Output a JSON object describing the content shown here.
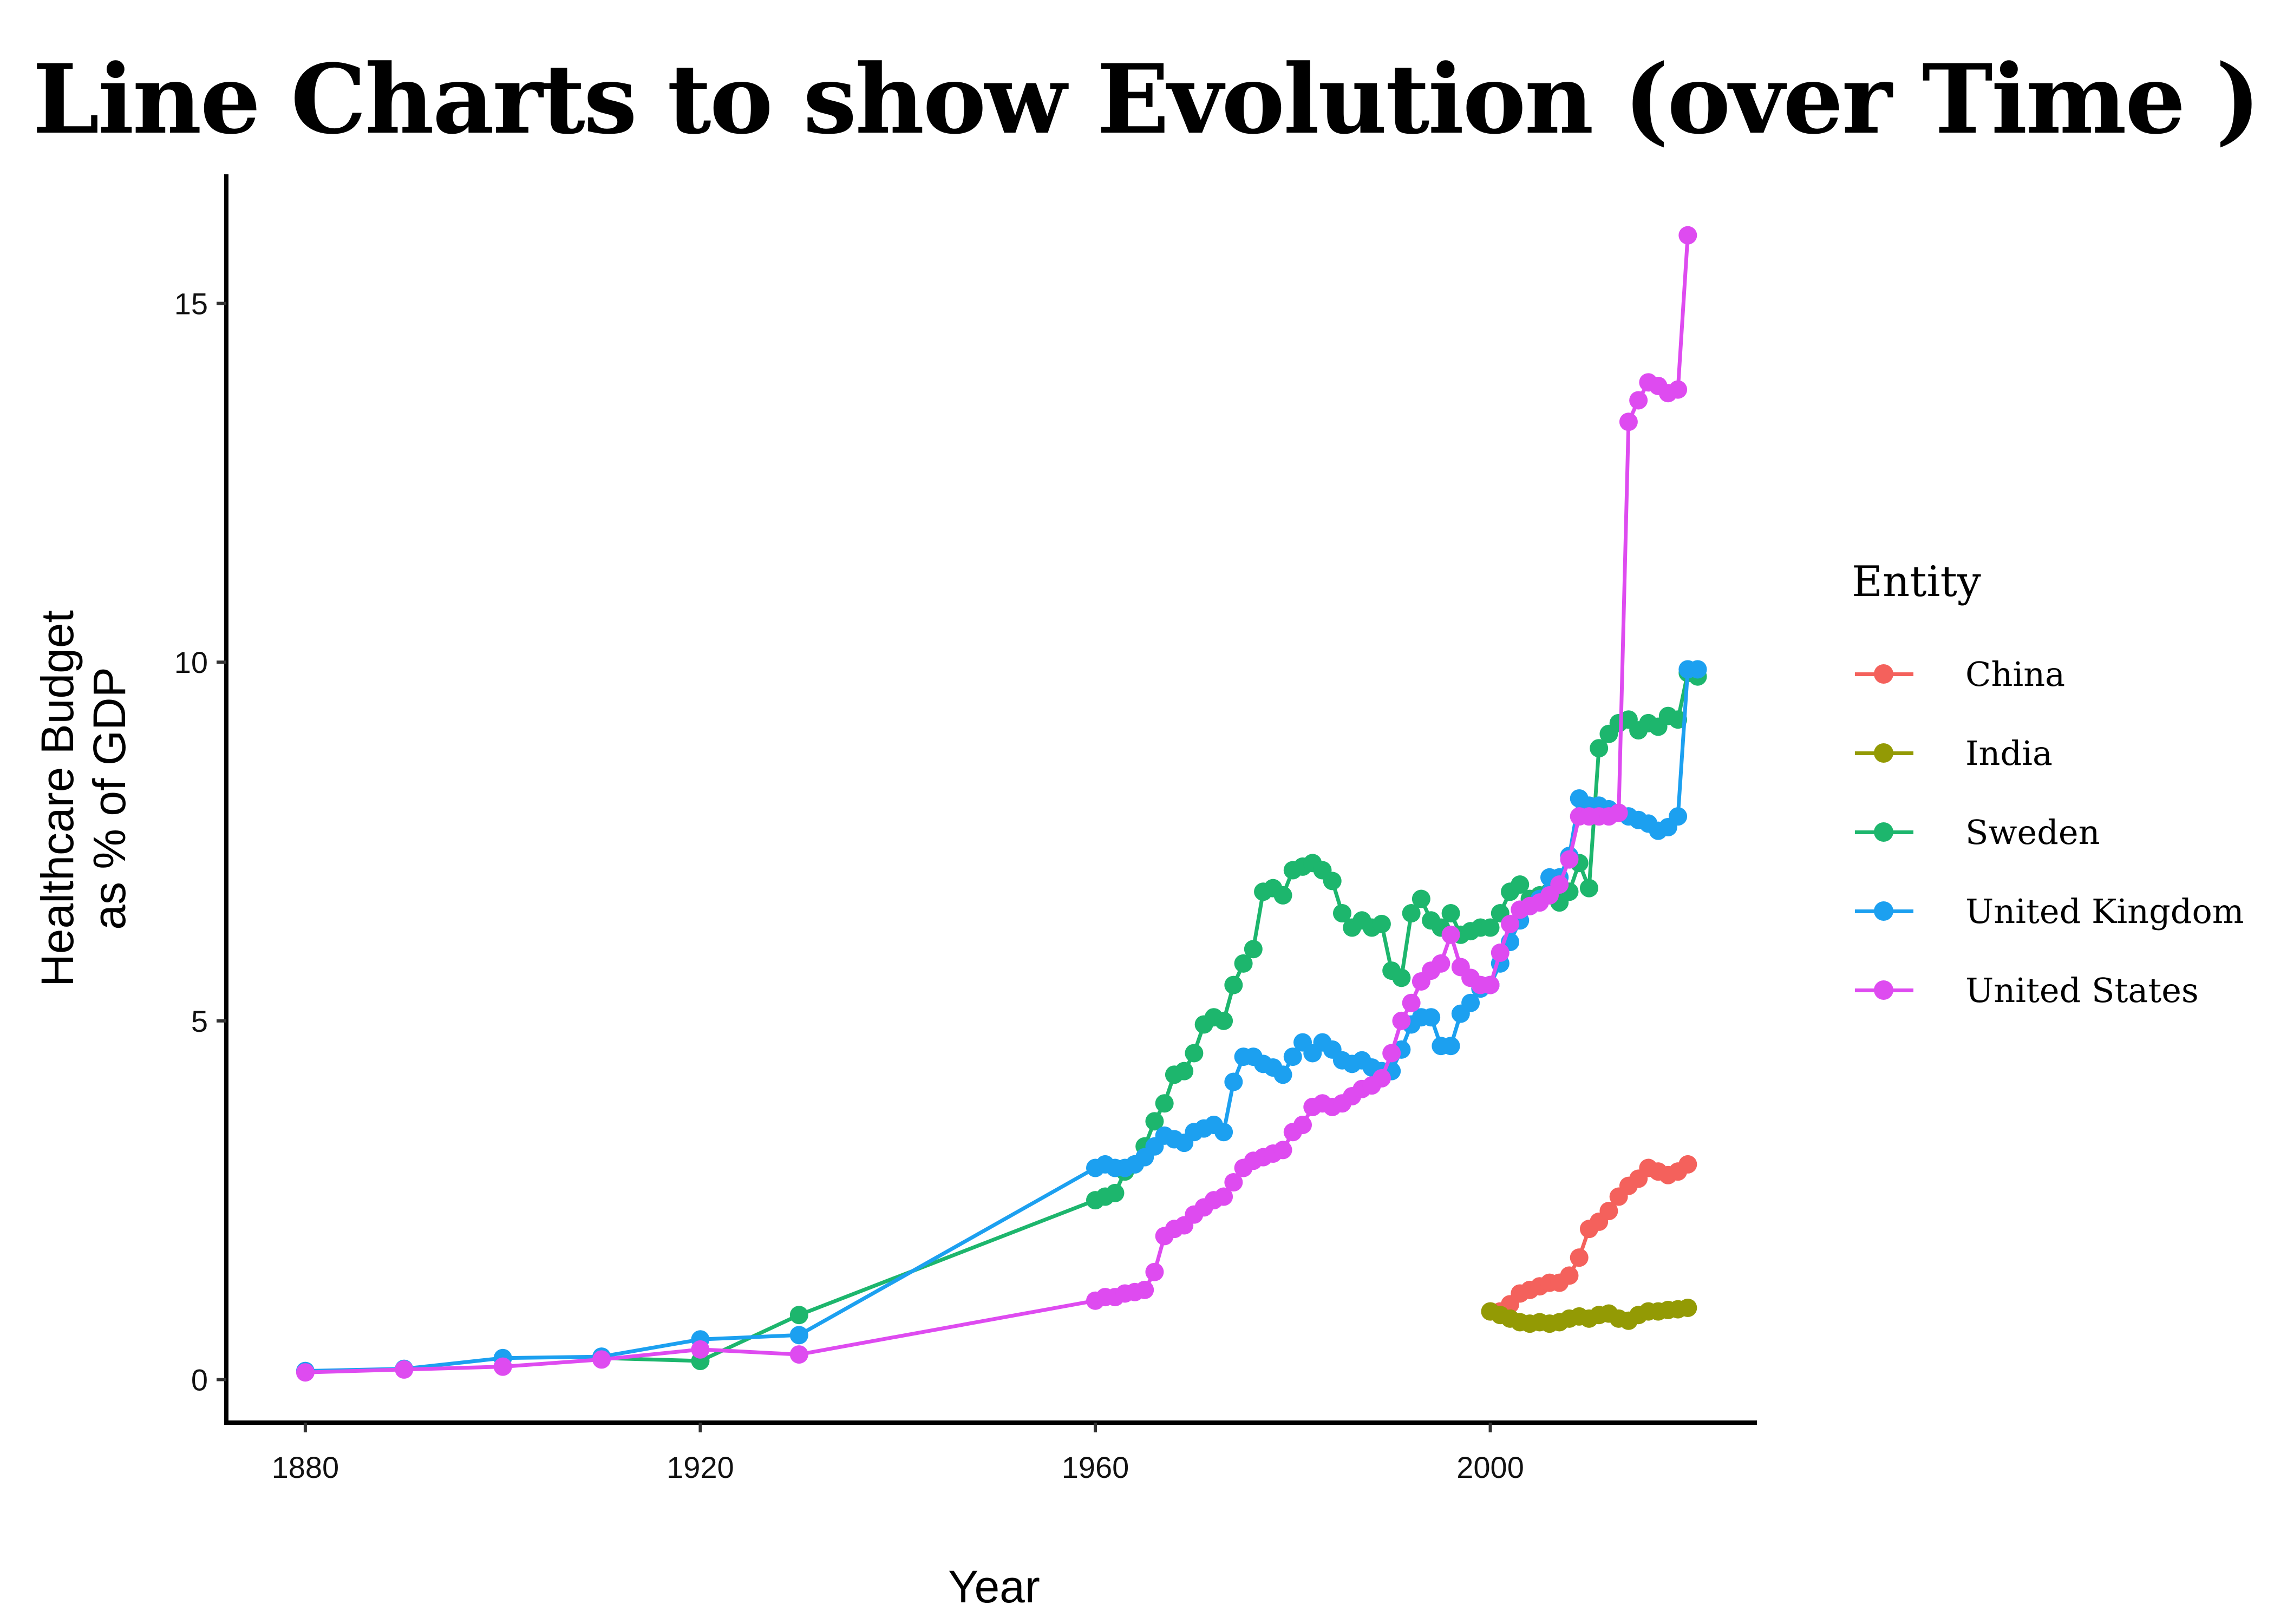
{
  "chart_data": {
    "type": "line",
    "title": "Line Charts to show Evolution (over Time )",
    "xlabel": "Year",
    "ylabel": [
      "Healthcare Budget",
      "as % of GDP"
    ],
    "xlim": [
      1872,
      2027
    ],
    "ylim": [
      -0.6,
      16.8
    ],
    "x_ticks": [
      1880,
      1920,
      1960,
      2000
    ],
    "y_ticks": [
      0,
      5,
      10,
      15
    ],
    "grid": false,
    "legend": {
      "title": "Entity",
      "position": "right"
    },
    "series": [
      {
        "name": "China",
        "color": "#F4615C",
        "x": [
          2000,
          2001,
          2002,
          2003,
          2004,
          2005,
          2006,
          2007,
          2008,
          2009,
          2010,
          2011,
          2012,
          2013,
          2014,
          2015,
          2016,
          2017,
          2018,
          2019,
          2020
        ],
        "y": [
          0.95,
          0.95,
          1.05,
          1.2,
          1.25,
          1.3,
          1.35,
          1.35,
          1.45,
          1.7,
          2.1,
          2.2,
          2.35,
          2.55,
          2.7,
          2.8,
          2.95,
          2.9,
          2.85,
          2.9,
          3.0
        ]
      },
      {
        "name": "India",
        "color": "#939A04",
        "x": [
          2000,
          2001,
          2002,
          2003,
          2004,
          2005,
          2006,
          2007,
          2008,
          2009,
          2010,
          2011,
          2012,
          2013,
          2014,
          2015,
          2016,
          2017,
          2018,
          2019,
          2020
        ],
        "y": [
          0.95,
          0.9,
          0.85,
          0.8,
          0.78,
          0.8,
          0.78,
          0.8,
          0.85,
          0.88,
          0.85,
          0.9,
          0.92,
          0.85,
          0.82,
          0.9,
          0.95,
          0.95,
          0.97,
          0.98,
          1.0
        ]
      },
      {
        "name": "Sweden",
        "color": "#1DB66D",
        "x": [
          1910,
          1920,
          1930,
          1960,
          1961,
          1962,
          1963,
          1964,
          1965,
          1966,
          1967,
          1968,
          1969,
          1970,
          1971,
          1972,
          1973,
          1974,
          1975,
          1976,
          1977,
          1978,
          1979,
          1980,
          1981,
          1982,
          1983,
          1984,
          1985,
          1986,
          1987,
          1988,
          1989,
          1990,
          1991,
          1992,
          1993,
          1994,
          1995,
          1996,
          1997,
          1998,
          1999,
          2000,
          2001,
          2002,
          2003,
          2004,
          2005,
          2006,
          2007,
          2008,
          2009,
          2010,
          2011,
          2012,
          2013,
          2014,
          2015,
          2016,
          2017,
          2018,
          2019,
          2020,
          2021
        ],
        "y": [
          0.3,
          0.26,
          0.9,
          2.5,
          2.55,
          2.6,
          2.9,
          3.0,
          3.25,
          3.6,
          3.85,
          4.25,
          4.3,
          4.55,
          4.95,
          5.05,
          5.0,
          5.5,
          5.8,
          6.0,
          6.8,
          6.85,
          6.75,
          7.1,
          7.15,
          7.2,
          7.1,
          6.95,
          6.5,
          6.3,
          6.4,
          6.3,
          6.35,
          5.7,
          5.6,
          6.5,
          6.7,
          6.4,
          6.3,
          6.5,
          6.2,
          6.25,
          6.3,
          6.3,
          6.5,
          6.8,
          6.9,
          6.7,
          6.75,
          6.8,
          6.65,
          6.8,
          7.2,
          6.85,
          8.8,
          9.0,
          9.15,
          9.2,
          9.05,
          9.15,
          9.1,
          9.25,
          9.2,
          9.85,
          9.8
        ]
      },
      {
        "name": "United Kingdom",
        "color": "#1CA0F0",
        "x": [
          1880,
          1890,
          1900,
          1910,
          1920,
          1930,
          1960,
          1961,
          1962,
          1963,
          1964,
          1965,
          1966,
          1967,
          1968,
          1969,
          1970,
          1971,
          1972,
          1973,
          1974,
          1975,
          1976,
          1977,
          1978,
          1979,
          1980,
          1981,
          1982,
          1983,
          1984,
          1985,
          1986,
          1987,
          1988,
          1989,
          1990,
          1991,
          1992,
          1993,
          1994,
          1995,
          1996,
          1997,
          1998,
          1999,
          2000,
          2001,
          2002,
          2003,
          2004,
          2005,
          2006,
          2007,
          2008,
          2009,
          2010,
          2011,
          2012,
          2013,
          2014,
          2015,
          2016,
          2017,
          2018,
          2019,
          2020,
          2021
        ],
        "y": [
          0.12,
          0.15,
          0.3,
          0.32,
          0.56,
          0.62,
          2.95,
          3.0,
          2.95,
          2.95,
          3.0,
          3.1,
          3.25,
          3.4,
          3.35,
          3.3,
          3.45,
          3.5,
          3.55,
          3.45,
          4.15,
          4.5,
          4.5,
          4.4,
          4.35,
          4.25,
          4.5,
          4.7,
          4.55,
          4.7,
          4.6,
          4.45,
          4.4,
          4.45,
          4.35,
          4.3,
          4.3,
          4.6,
          4.95,
          5.05,
          5.05,
          4.65,
          4.65,
          5.1,
          5.25,
          5.45,
          5.5,
          5.8,
          6.1,
          6.4,
          6.6,
          6.7,
          7.0,
          7.0,
          7.3,
          8.1,
          8.0,
          8.0,
          7.95,
          7.9,
          7.85,
          7.8,
          7.75,
          7.65,
          7.7,
          7.85,
          9.9,
          9.9
        ]
      },
      {
        "name": "United States",
        "color": "#DE4BF0",
        "x": [
          1880,
          1890,
          1900,
          1910,
          1920,
          1930,
          1960,
          1961,
          1962,
          1963,
          1964,
          1965,
          1966,
          1967,
          1968,
          1969,
          1970,
          1971,
          1972,
          1973,
          1974,
          1975,
          1976,
          1977,
          1978,
          1979,
          1980,
          1981,
          1982,
          1983,
          1984,
          1985,
          1986,
          1987,
          1988,
          1989,
          1990,
          1991,
          1992,
          1993,
          1994,
          1995,
          1996,
          1997,
          1998,
          1999,
          2000,
          2001,
          2002,
          2003,
          2004,
          2005,
          2006,
          2007,
          2008,
          2009,
          2010,
          2011,
          2012,
          2013,
          2014,
          2015,
          2016,
          2017,
          2018,
          2019,
          2020
        ],
        "y": [
          0.1,
          0.14,
          0.18,
          0.28,
          0.42,
          0.35,
          1.1,
          1.15,
          1.15,
          1.2,
          1.22,
          1.25,
          1.5,
          2.0,
          2.1,
          2.15,
          2.3,
          2.4,
          2.5,
          2.55,
          2.75,
          2.95,
          3.05,
          3.1,
          3.15,
          3.2,
          3.45,
          3.55,
          3.8,
          3.85,
          3.8,
          3.85,
          3.95,
          4.05,
          4.1,
          4.2,
          4.55,
          5.0,
          5.25,
          5.55,
          5.7,
          5.8,
          6.2,
          5.75,
          5.6,
          5.5,
          5.5,
          5.95,
          6.35,
          6.55,
          6.6,
          6.65,
          6.75,
          6.9,
          7.25,
          7.85,
          7.85,
          7.85,
          7.85,
          7.9,
          13.35,
          13.65,
          13.9,
          13.85,
          13.75,
          13.8,
          15.95
        ]
      }
    ]
  }
}
